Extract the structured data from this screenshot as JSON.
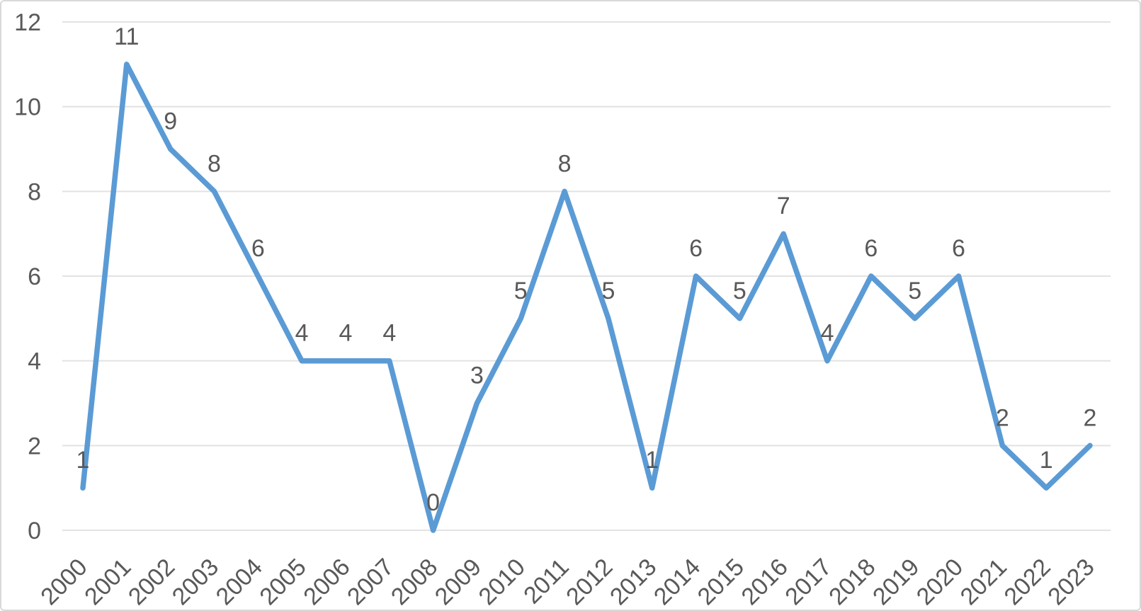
{
  "chart_data": {
    "type": "line",
    "categories": [
      "2000",
      "2001",
      "2002",
      "2003",
      "2004",
      "2005",
      "2006",
      "2007",
      "2008",
      "2009",
      "2010",
      "2011",
      "2012",
      "2013",
      "2014",
      "2015",
      "2016",
      "2017",
      "2018",
      "2019",
      "2020",
      "2021",
      "2022",
      "2023"
    ],
    "series": [
      {
        "name": "Series 1",
        "values": [
          1,
          11,
          9,
          8,
          6,
          4,
          4,
          4,
          0,
          3,
          5,
          8,
          5,
          1,
          6,
          5,
          7,
          4,
          6,
          5,
          6,
          2,
          1,
          2
        ],
        "data_labels": [
          "1",
          "11",
          "9",
          "8",
          "6",
          "4",
          "4",
          "4",
          "0",
          "3",
          "5",
          "8",
          "5",
          "1",
          "6",
          "5",
          "7",
          "4",
          "6",
          "5",
          "6",
          "2",
          "1",
          "2"
        ]
      }
    ],
    "title": "",
    "xlabel": "",
    "ylabel": "",
    "ylim": [
      0,
      12
    ],
    "yticks": [
      "0",
      "2",
      "4",
      "6",
      "8",
      "10",
      "12"
    ],
    "ytick_values": [
      0,
      2,
      4,
      6,
      8,
      10,
      12
    ],
    "grid": true,
    "legend": false,
    "x_label_rotation_deg": -45,
    "colors": {
      "line": "#5b9bd5",
      "text": "#595959",
      "gridline": "#e2e2e2",
      "frame_border": "#d9d9d9",
      "background": "#ffffff"
    }
  }
}
